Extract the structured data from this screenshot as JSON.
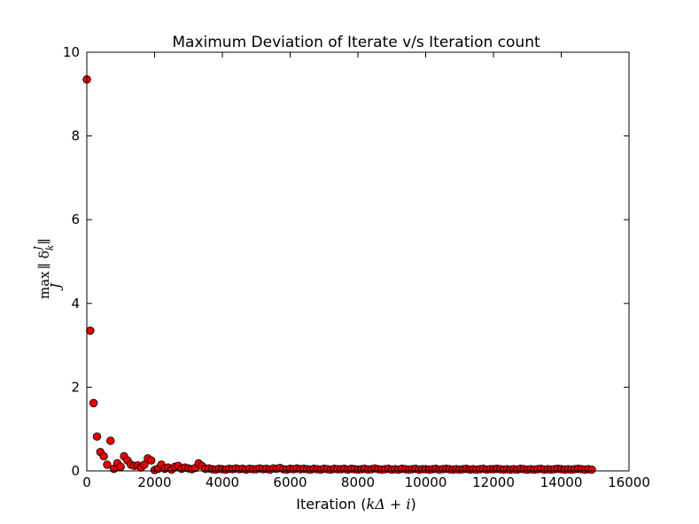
{
  "chart_data": {
    "type": "scatter",
    "title": "Maximum Deviation of Iterate v/s Iteration count",
    "xlabel": {
      "prefix": "Iteration (",
      "math": "kΔ + i",
      "suffix": ")"
    },
    "ylabel": {
      "operator": "max",
      "subscript": "J",
      "expr": "∥ δ",
      "sub": "k",
      "sup": "J",
      "close": "∥"
    },
    "xlim": [
      0,
      16000
    ],
    "ylim": [
      0,
      10
    ],
    "xticks": [
      0,
      2000,
      4000,
      6000,
      8000,
      10000,
      12000,
      14000,
      16000
    ],
    "yticks": [
      0,
      2,
      4,
      6,
      8,
      10
    ],
    "grid": false,
    "marker_color": "#e60000",
    "marker_edge": "#000000",
    "series": [
      {
        "x": [
          0,
          100,
          200,
          300,
          400,
          500,
          600,
          700,
          800,
          900,
          1000,
          1100,
          1200,
          1300,
          1400,
          1500,
          1600,
          1700,
          1800,
          1900,
          2000,
          2100,
          2200,
          2300,
          2400,
          2500,
          2600,
          2700,
          2800,
          2900,
          3000,
          3100,
          3200,
          3300,
          3400,
          3500,
          3600,
          3700,
          3800,
          3900,
          4000,
          4100,
          4200,
          4300,
          4400,
          4500,
          4600,
          4700,
          4800,
          4900,
          5000,
          5100,
          5200,
          5300,
          5400,
          5500,
          5600,
          5700,
          5800,
          5900,
          6000,
          6100,
          6200,
          6300,
          6400,
          6500,
          6600,
          6700,
          6800,
          6900,
          7000,
          7100,
          7200,
          7300,
          7400,
          7500,
          7600,
          7700,
          7800,
          7900,
          8000,
          8100,
          8200,
          8300,
          8400,
          8500,
          8600,
          8700,
          8800,
          8900,
          9000,
          9100,
          9200,
          9300,
          9400,
          9500,
          9600,
          9700,
          9800,
          9900,
          10000,
          10100,
          10200,
          10300,
          10400,
          10500,
          10600,
          10700,
          10800,
          10900,
          11000,
          11100,
          11200,
          11300,
          11400,
          11500,
          11600,
          11700,
          11800,
          11900,
          12000,
          12100,
          12200,
          12300,
          12400,
          12500,
          12600,
          12700,
          12800,
          12900,
          13000,
          13100,
          13200,
          13300,
          13400,
          13500,
          13600,
          13700,
          13800,
          13900,
          14000,
          14100,
          14200,
          14300,
          14400,
          14500,
          14600,
          14700,
          14800,
          14900
        ],
        "y": [
          9.35,
          3.35,
          1.62,
          0.82,
          0.45,
          0.35,
          0.15,
          0.72,
          0.05,
          0.18,
          0.1,
          0.35,
          0.25,
          0.15,
          0.12,
          0.13,
          0.08,
          0.15,
          0.3,
          0.25,
          0.02,
          0.05,
          0.15,
          0.05,
          0.08,
          0.03,
          0.1,
          0.12,
          0.05,
          0.08,
          0.06,
          0.04,
          0.07,
          0.18,
          0.12,
          0.05,
          0.06,
          0.04,
          0.03,
          0.05,
          0.04,
          0.03,
          0.05,
          0.04,
          0.06,
          0.04,
          0.05,
          0.03,
          0.05,
          0.04,
          0.04,
          0.06,
          0.04,
          0.05,
          0.03,
          0.06,
          0.05,
          0.07,
          0.04,
          0.03,
          0.05,
          0.04,
          0.06,
          0.04,
          0.05,
          0.04,
          0.03,
          0.05,
          0.04,
          0.03,
          0.05,
          0.04,
          0.03,
          0.05,
          0.04,
          0.04,
          0.05,
          0.03,
          0.05,
          0.04,
          0.03,
          0.04,
          0.05,
          0.03,
          0.04,
          0.06,
          0.04,
          0.03,
          0.04,
          0.05,
          0.03,
          0.04,
          0.03,
          0.05,
          0.04,
          0.03,
          0.04,
          0.05,
          0.03,
          0.04,
          0.04,
          0.03,
          0.04,
          0.05,
          0.03,
          0.04,
          0.05,
          0.04,
          0.03,
          0.04,
          0.03,
          0.04,
          0.05,
          0.03,
          0.04,
          0.03,
          0.04,
          0.05,
          0.03,
          0.04,
          0.04,
          0.05,
          0.04,
          0.03,
          0.04,
          0.03,
          0.04,
          0.03,
          0.05,
          0.04,
          0.03,
          0.04,
          0.03,
          0.04,
          0.05,
          0.03,
          0.04,
          0.03,
          0.04,
          0.05,
          0.04,
          0.03,
          0.04,
          0.03,
          0.04,
          0.05,
          0.04,
          0.03,
          0.04,
          0.03
        ]
      }
    ]
  }
}
